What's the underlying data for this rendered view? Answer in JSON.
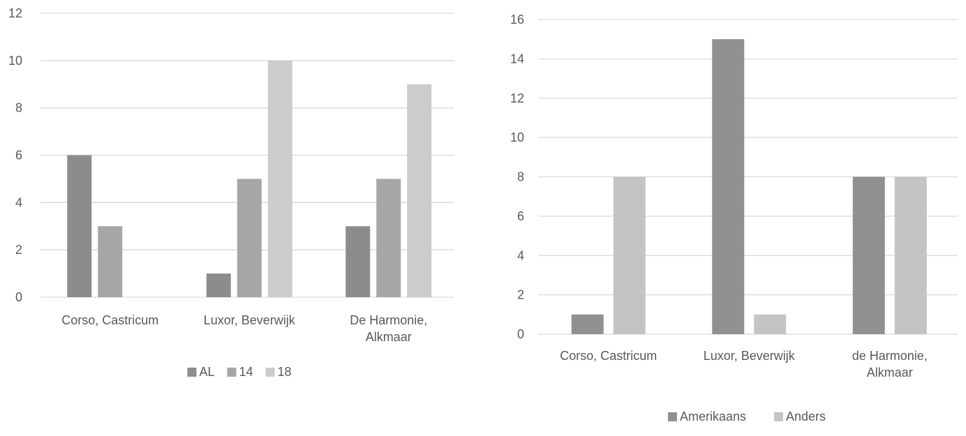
{
  "chart_data": [
    {
      "type": "bar",
      "categories": [
        [
          "Corso, Castricum"
        ],
        [
          "Luxor, Beverwijk"
        ],
        [
          "De Harmonie,",
          "Alkmaar"
        ]
      ],
      "series": [
        {
          "name": "AL",
          "values": [
            6,
            1,
            3
          ],
          "color": "#8c8c8c"
        },
        {
          "name": "14",
          "values": [
            3,
            5,
            5
          ],
          "color": "#a6a6a6"
        },
        {
          "name": "18",
          "values": [
            0,
            10,
            9
          ],
          "color": "#cccccc"
        }
      ],
      "yticks": [
        0,
        2,
        4,
        6,
        8,
        10,
        12
      ],
      "ylim": [
        0,
        12
      ],
      "grid": true,
      "legend_position": "bottom"
    },
    {
      "type": "bar",
      "categories": [
        [
          "Corso, Castricum"
        ],
        [
          "Luxor, Beverwijk"
        ],
        [
          "de Harmonie,",
          "Alkmaar"
        ]
      ],
      "series": [
        {
          "name": "Amerikaans",
          "values": [
            1,
            15,
            8
          ],
          "color": "#909090"
        },
        {
          "name": "Anders",
          "values": [
            8,
            1,
            8
          ],
          "color": "#c4c4c4"
        }
      ],
      "yticks": [
        0,
        2,
        4,
        6,
        8,
        10,
        12,
        14,
        16
      ],
      "ylim": [
        0,
        16
      ],
      "grid": true,
      "legend_position": "bottom"
    }
  ]
}
